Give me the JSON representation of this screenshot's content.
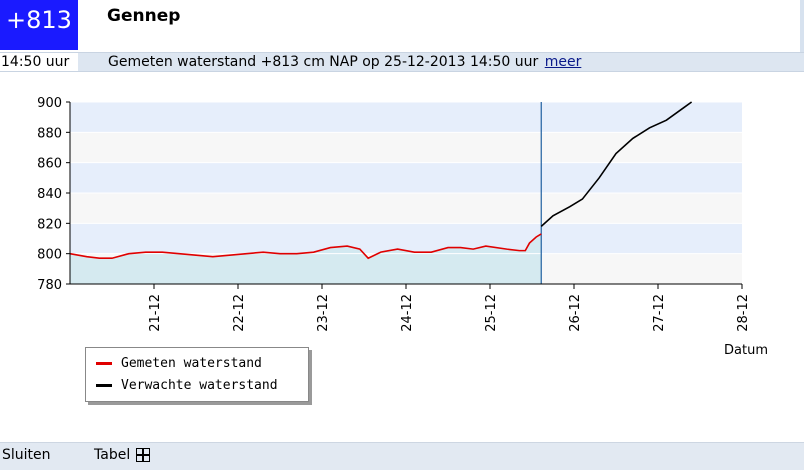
{
  "header": {
    "level_badge": "+813",
    "station": "Gennep"
  },
  "info_bar": {
    "time": "14:50 uur",
    "text": "Gemeten waterstand +813 cm NAP op 25-12-2013 14:50 uur",
    "link": "meer"
  },
  "colors": {
    "badge_bg": "#1a1aff",
    "measured": "#e00000",
    "forecast": "#000000",
    "now_line": "#1f5f9f"
  },
  "chart_data": {
    "type": "line",
    "title": "",
    "xlabel": "Datum",
    "ylabel": "",
    "xlim": [
      20.0,
      28.0
    ],
    "ylim": [
      780,
      900
    ],
    "yticks": [
      780,
      800,
      820,
      840,
      860,
      880,
      900
    ],
    "xticks": [
      21,
      22,
      23,
      24,
      25,
      26,
      27,
      28
    ],
    "xtick_labels": [
      "21-12",
      "22-12",
      "23-12",
      "24-12",
      "25-12",
      "26-12",
      "27-12",
      "28-12"
    ],
    "now_x": 25.61,
    "series": [
      {
        "name": "Gemeten waterstand",
        "color": "#e00000",
        "points": [
          [
            20.0,
            800
          ],
          [
            20.2,
            798
          ],
          [
            20.35,
            797
          ],
          [
            20.5,
            797
          ],
          [
            20.7,
            800
          ],
          [
            20.9,
            801
          ],
          [
            21.1,
            801
          ],
          [
            21.3,
            800
          ],
          [
            21.5,
            799
          ],
          [
            21.7,
            798
          ],
          [
            21.9,
            799
          ],
          [
            22.1,
            800
          ],
          [
            22.3,
            801
          ],
          [
            22.5,
            800
          ],
          [
            22.7,
            800
          ],
          [
            22.9,
            801
          ],
          [
            23.1,
            804
          ],
          [
            23.3,
            805
          ],
          [
            23.45,
            803
          ],
          [
            23.55,
            797
          ],
          [
            23.7,
            801
          ],
          [
            23.9,
            803
          ],
          [
            24.1,
            801
          ],
          [
            24.3,
            801
          ],
          [
            24.5,
            804
          ],
          [
            24.65,
            804
          ],
          [
            24.8,
            803
          ],
          [
            24.95,
            805
          ],
          [
            25.2,
            803
          ],
          [
            25.35,
            802
          ],
          [
            25.42,
            802
          ],
          [
            25.47,
            807
          ],
          [
            25.55,
            811
          ],
          [
            25.61,
            813
          ]
        ]
      },
      {
        "name": "Verwachte waterstand",
        "color": "#000000",
        "points": [
          [
            25.61,
            818
          ],
          [
            25.75,
            825
          ],
          [
            25.95,
            831
          ],
          [
            26.1,
            836
          ],
          [
            26.3,
            850
          ],
          [
            26.5,
            866
          ],
          [
            26.7,
            876
          ],
          [
            26.9,
            883
          ],
          [
            27.1,
            888
          ],
          [
            27.3,
            896
          ],
          [
            27.4,
            900
          ]
        ]
      }
    ],
    "legend_position": "bottom-left"
  },
  "footer": {
    "close": "Sluiten",
    "table": "Tabel",
    "table_icon": "grid-icon"
  }
}
